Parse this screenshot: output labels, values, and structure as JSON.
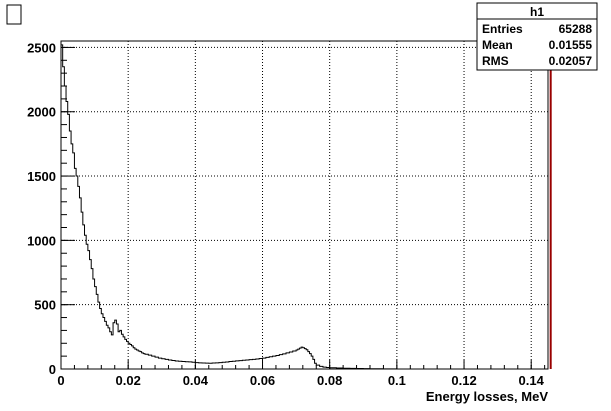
{
  "window": {
    "corner_box_name": "canvas-toggle-box"
  },
  "stats_box": {
    "title": "h1",
    "rows": [
      {
        "label": "Entries",
        "value": "65288"
      },
      {
        "label": "Mean",
        "value": "0.01555"
      },
      {
        "label": "RMS",
        "value": "0.02057"
      }
    ]
  },
  "chart_data": {
    "type": "histogram",
    "title": "",
    "xlabel": "Energy losses, MeV",
    "ylabel": "",
    "xlim": [
      0,
      0.145
    ],
    "ylim": [
      0,
      2550
    ],
    "grid": true,
    "x_ticks": [
      0,
      0.02,
      0.04,
      0.06,
      0.08,
      0.1,
      0.12,
      0.14
    ],
    "x_tick_labels": [
      "0",
      "0.02",
      "0.04",
      "0.06",
      "0.08",
      "0.1",
      "0.12",
      "0.14"
    ],
    "y_ticks": [
      0,
      500,
      1000,
      1500,
      2000,
      2500
    ],
    "y_tick_labels": [
      "0",
      "500",
      "1000",
      "1500",
      "2000",
      "2500"
    ],
    "line_color": "#000000",
    "overflow_line_color": "#990000",
    "overflow_line_x": 0.1458,
    "series": [
      {
        "points": [
          [
            0.0,
            2520
          ],
          [
            0.0005,
            2350
          ],
          [
            0.001,
            2200
          ],
          [
            0.0015,
            2080
          ],
          [
            0.002,
            1980
          ],
          [
            0.0025,
            1850
          ],
          [
            0.003,
            1750
          ],
          [
            0.0035,
            1680
          ],
          [
            0.004,
            1560
          ],
          [
            0.0045,
            1500
          ],
          [
            0.005,
            1420
          ],
          [
            0.0055,
            1330
          ],
          [
            0.006,
            1220
          ],
          [
            0.0065,
            1120
          ],
          [
            0.007,
            1040
          ],
          [
            0.0075,
            970
          ],
          [
            0.008,
            920
          ],
          [
            0.0085,
            850
          ],
          [
            0.009,
            780
          ],
          [
            0.0095,
            700
          ],
          [
            0.01,
            640
          ],
          [
            0.0105,
            580
          ],
          [
            0.011,
            520
          ],
          [
            0.0115,
            470
          ],
          [
            0.012,
            430
          ],
          [
            0.0125,
            400
          ],
          [
            0.013,
            370
          ],
          [
            0.0135,
            340
          ],
          [
            0.014,
            320
          ],
          [
            0.0145,
            290
          ],
          [
            0.015,
            265
          ],
          [
            0.0155,
            360
          ],
          [
            0.016,
            380
          ],
          [
            0.0165,
            350
          ],
          [
            0.017,
            290
          ],
          [
            0.0175,
            300
          ],
          [
            0.018,
            270
          ],
          [
            0.0185,
            250
          ],
          [
            0.019,
            230
          ],
          [
            0.0195,
            215
          ],
          [
            0.02,
            200
          ],
          [
            0.0205,
            190
          ],
          [
            0.021,
            180
          ],
          [
            0.0215,
            165
          ],
          [
            0.022,
            155
          ],
          [
            0.0225,
            148
          ],
          [
            0.023,
            140
          ],
          [
            0.0235,
            135
          ],
          [
            0.024,
            125
          ],
          [
            0.0245,
            120
          ],
          [
            0.025,
            115
          ],
          [
            0.026,
            108
          ],
          [
            0.027,
            100
          ],
          [
            0.028,
            92
          ],
          [
            0.029,
            85
          ],
          [
            0.03,
            80
          ],
          [
            0.031,
            75
          ],
          [
            0.032,
            70
          ],
          [
            0.033,
            66
          ],
          [
            0.034,
            62
          ],
          [
            0.035,
            60
          ],
          [
            0.036,
            58
          ],
          [
            0.037,
            56
          ],
          [
            0.038,
            55
          ],
          [
            0.039,
            52
          ],
          [
            0.04,
            50
          ],
          [
            0.041,
            48
          ],
          [
            0.042,
            47
          ],
          [
            0.043,
            46
          ],
          [
            0.044,
            45
          ],
          [
            0.045,
            47
          ],
          [
            0.046,
            48
          ],
          [
            0.047,
            50
          ],
          [
            0.048,
            52
          ],
          [
            0.049,
            54
          ],
          [
            0.05,
            58
          ],
          [
            0.051,
            60
          ],
          [
            0.052,
            63
          ],
          [
            0.053,
            65
          ],
          [
            0.054,
            68
          ],
          [
            0.055,
            70
          ],
          [
            0.056,
            73
          ],
          [
            0.057,
            75
          ],
          [
            0.058,
            78
          ],
          [
            0.059,
            82
          ],
          [
            0.06,
            85
          ],
          [
            0.061,
            90
          ],
          [
            0.062,
            95
          ],
          [
            0.063,
            100
          ],
          [
            0.064,
            105
          ],
          [
            0.065,
            112
          ],
          [
            0.066,
            118
          ],
          [
            0.067,
            125
          ],
          [
            0.068,
            132
          ],
          [
            0.069,
            140
          ],
          [
            0.07,
            148
          ],
          [
            0.0705,
            155
          ],
          [
            0.071,
            162
          ],
          [
            0.0715,
            170
          ],
          [
            0.072,
            165
          ],
          [
            0.0725,
            158
          ],
          [
            0.073,
            150
          ],
          [
            0.0735,
            135
          ],
          [
            0.074,
            120
          ],
          [
            0.0745,
            100
          ],
          [
            0.075,
            75
          ],
          [
            0.0755,
            45
          ],
          [
            0.076,
            30
          ],
          [
            0.077,
            20
          ],
          [
            0.078,
            15
          ],
          [
            0.079,
            12
          ],
          [
            0.08,
            10
          ],
          [
            0.082,
            8
          ],
          [
            0.084,
            6
          ],
          [
            0.086,
            5
          ],
          [
            0.088,
            4
          ],
          [
            0.09,
            3
          ],
          [
            0.092,
            2
          ],
          [
            0.094,
            2
          ],
          [
            0.096,
            1
          ],
          [
            0.098,
            1
          ],
          [
            0.1,
            0
          ],
          [
            0.105,
            0
          ],
          [
            0.11,
            0
          ],
          [
            0.12,
            0
          ],
          [
            0.13,
            0
          ],
          [
            0.14,
            0
          ],
          [
            0.145,
            0
          ]
        ]
      }
    ]
  }
}
